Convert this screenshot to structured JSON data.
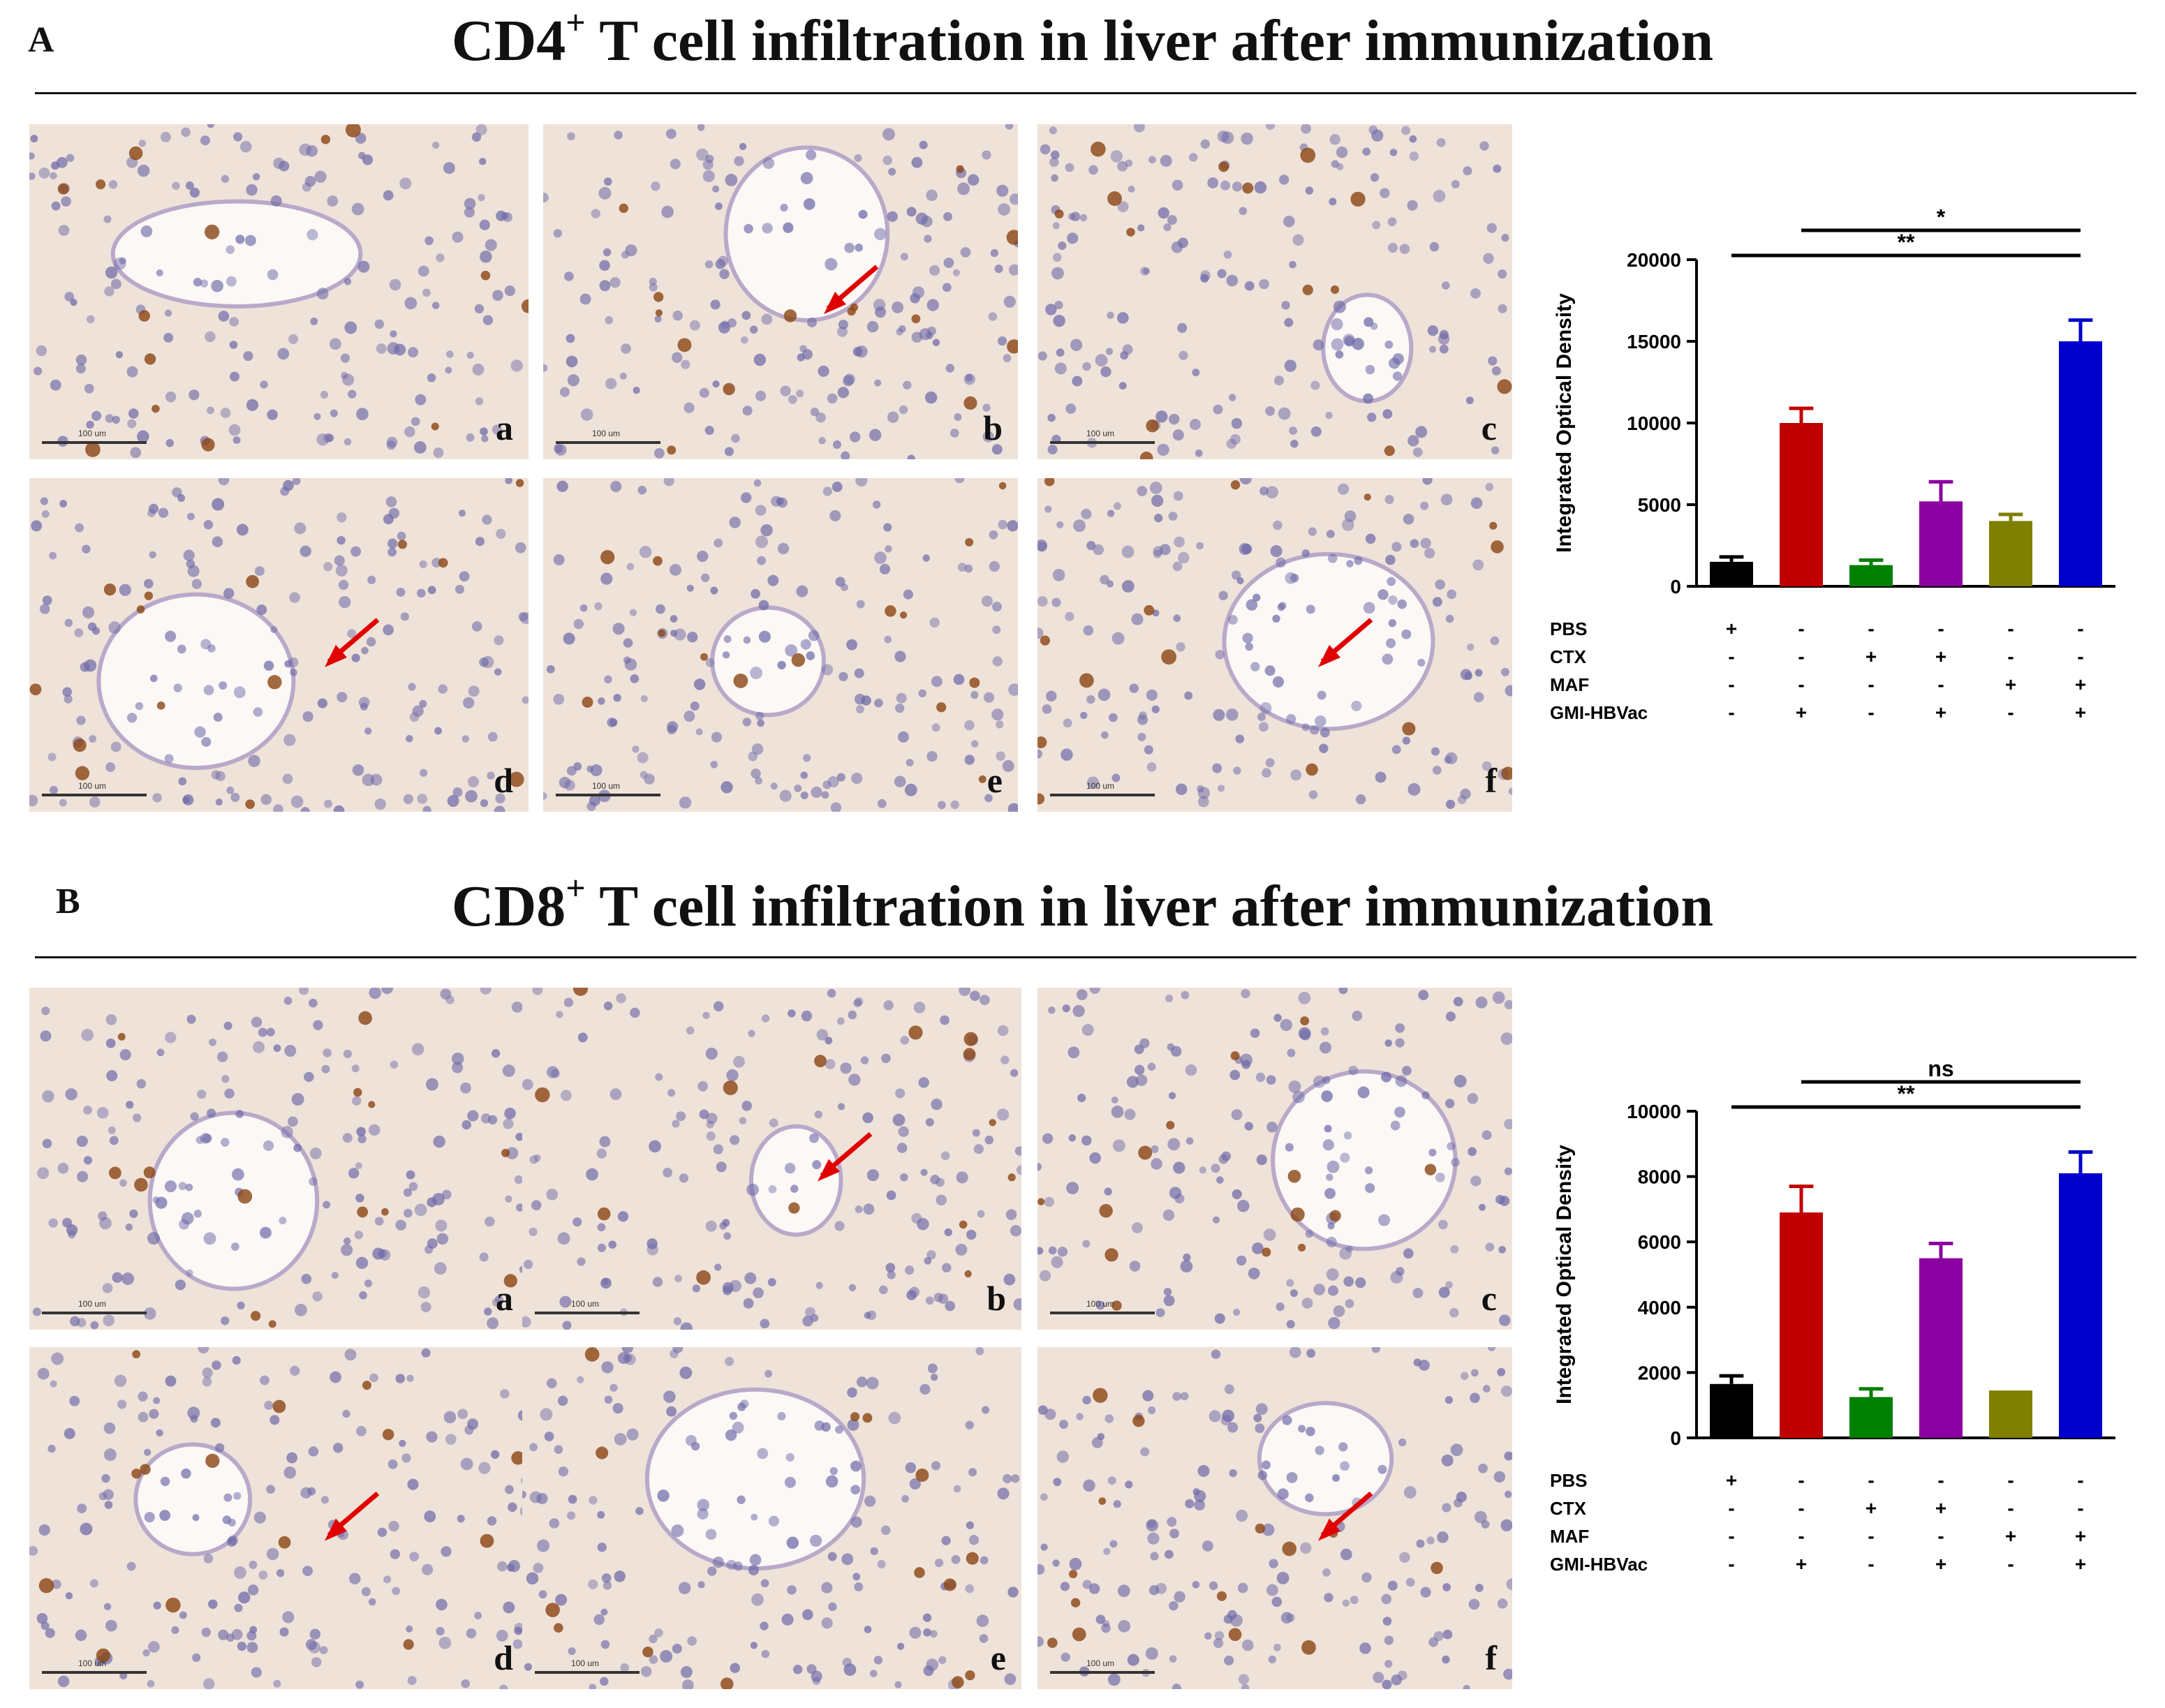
{
  "figure": {
    "panels": [
      {
        "letter": "A",
        "title_prefix": "CD4",
        "title_sup": "+",
        "title_rest": " T cell infiltration in liver after immunization",
        "micrographs": [
          {
            "label": "a",
            "scale": "100 um",
            "arrows": 0
          },
          {
            "label": "b",
            "scale": "100 um",
            "arrows": 1
          },
          {
            "label": "c",
            "scale": "100 um",
            "arrows": 0
          },
          {
            "label": "d",
            "scale": "100 um",
            "arrows": 1
          },
          {
            "label": "e",
            "scale": "100 um",
            "arrows": 0
          },
          {
            "label": "f",
            "scale": "100 um",
            "arrows": 1
          }
        ]
      },
      {
        "letter": "B",
        "title_prefix": "CD8",
        "title_sup": "+",
        "title_rest": " T cell infiltration in liver after immunization",
        "micrographs": [
          {
            "label": "a",
            "scale": "100 um",
            "arrows": 0
          },
          {
            "label": "b",
            "scale": "100 um",
            "arrows": 1
          },
          {
            "label": "c",
            "scale": "100 um",
            "arrows": 0
          },
          {
            "label": "d",
            "scale": "100 um",
            "arrows": 1
          },
          {
            "label": "e",
            "scale": "100 um",
            "arrows": 0
          },
          {
            "label": "f",
            "scale": "100 um",
            "arrows": 1
          }
        ]
      }
    ]
  },
  "colors": {
    "bars": [
      "#000000",
      "#c00000",
      "#008000",
      "#8b00a0",
      "#7f7f00",
      "#0000cc"
    ],
    "tissue": "#efe2d8",
    "nuclei": "#6e6aa8",
    "stain": "#8b4513",
    "arrow": "#e00000"
  },
  "chart_data": [
    {
      "type": "bar",
      "ylabel": "Integrated Optical Density",
      "ylim": [
        0,
        20000
      ],
      "yticks": [
        "0",
        "5000",
        "10000",
        "15000",
        "20000"
      ],
      "ytick_values": [
        0,
        5000,
        10000,
        15000,
        20000
      ],
      "values": [
        1500,
        10000,
        1300,
        5200,
        4000,
        15000
      ],
      "errors": [
        300,
        900,
        300,
        1200,
        400,
        1300
      ],
      "factor_rows": [
        {
          "name": "PBS",
          "signs": [
            "+",
            "-",
            "-",
            "-",
            "-",
            "-"
          ]
        },
        {
          "name": "CTX",
          "signs": [
            "-",
            "-",
            "+",
            "+",
            "-",
            "-"
          ]
        },
        {
          "name": "MAF",
          "signs": [
            "-",
            "-",
            "-",
            "-",
            "+",
            "+"
          ]
        },
        {
          "name": "GMI-HBVac",
          "signs": [
            "-",
            "+",
            "-",
            "+",
            "-",
            "+"
          ]
        }
      ],
      "significance": [
        {
          "from": 1,
          "to": 5,
          "label": "*"
        },
        {
          "from": 0,
          "to": 5,
          "label": "**"
        }
      ]
    },
    {
      "type": "bar",
      "ylabel": "Integrated Optical Density",
      "ylim": [
        0,
        10000
      ],
      "yticks": [
        "0",
        "2000",
        "4000",
        "6000",
        "8000",
        "10000"
      ],
      "ytick_values": [
        0,
        2000,
        4000,
        6000,
        8000,
        10000
      ],
      "values": [
        1650,
        6900,
        1250,
        5500,
        1450,
        8100
      ],
      "errors": [
        250,
        800,
        250,
        450,
        0,
        650
      ],
      "factor_rows": [
        {
          "name": "PBS",
          "signs": [
            "+",
            "-",
            "-",
            "-",
            "-",
            "-"
          ]
        },
        {
          "name": "CTX",
          "signs": [
            "-",
            "-",
            "+",
            "+",
            "-",
            "-"
          ]
        },
        {
          "name": "MAF",
          "signs": [
            "-",
            "-",
            "-",
            "-",
            "+",
            "+"
          ]
        },
        {
          "name": "GMI-HBVac",
          "signs": [
            "-",
            "+",
            "-",
            "+",
            "-",
            "+"
          ]
        }
      ],
      "significance": [
        {
          "from": 1,
          "to": 5,
          "label": "ns"
        },
        {
          "from": 0,
          "to": 5,
          "label": "**"
        }
      ]
    }
  ]
}
